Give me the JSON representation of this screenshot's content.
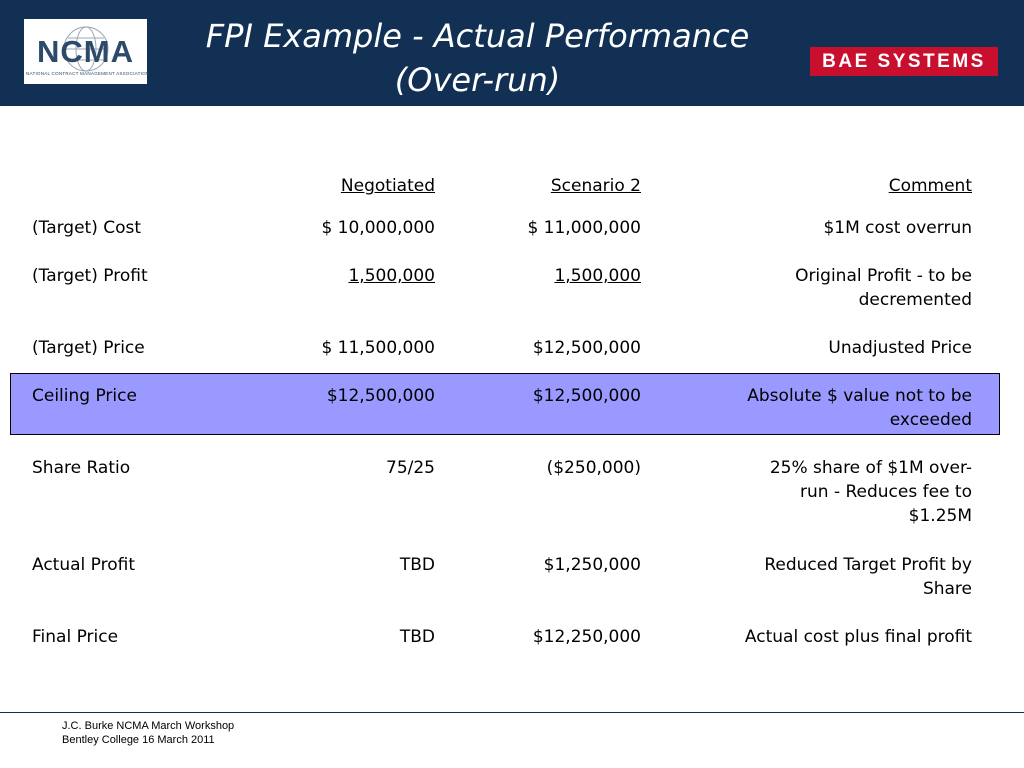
{
  "header": {
    "title_line1": "FPI Example - Actual Performance",
    "title_line2": "(Over-run)",
    "left_logo": {
      "text": "NCMA",
      "subtext": "NATIONAL CONTRACT MANAGEMENT ASSOCIATION"
    },
    "right_logo": {
      "text": "BAE SYSTEMS"
    },
    "colors": {
      "band": "#123054",
      "bae_red": "#c8102e"
    }
  },
  "table": {
    "headers": [
      "Negotiated",
      "Scenario 2",
      "Comment"
    ],
    "rows": [
      {
        "label": "(Target) Cost",
        "negotiated": "$ 10,000,000",
        "scenario2": "$ 11,000,000",
        "comment": "$1M cost overrun"
      },
      {
        "label": "(Target) Profit",
        "negotiated": "1,500,000",
        "scenario2": "1,500,000",
        "comment": "Original Profit - to be decremented"
      },
      {
        "label": "(Target) Price",
        "negotiated": "$ 11,500,000",
        "scenario2": "$12,500,000",
        "comment": "Unadjusted Price"
      },
      {
        "label": "Ceiling Price",
        "negotiated": "$12,500,000",
        "scenario2": "$12,500,000",
        "comment": "Absolute $ value not to be exceeded"
      },
      {
        "label": "Share Ratio",
        "negotiated": "75/25",
        "scenario2": "($250,000)",
        "comment": "25% share of $1M over-run - Reduces fee to $1.25M"
      },
      {
        "label": "Actual Profit",
        "negotiated": "TBD",
        "scenario2": "$1,250,000",
        "comment": "Reduced Target Profit by Share"
      },
      {
        "label": "Final Price",
        "negotiated": "TBD",
        "scenario2": "$12,250,000",
        "comment": "Actual cost plus final profit"
      }
    ],
    "highlight_color": "#9999ff"
  },
  "footer": {
    "line1": "J.C. Burke NCMA March Workshop",
    "line2": "Bentley College 16 March 2011"
  }
}
